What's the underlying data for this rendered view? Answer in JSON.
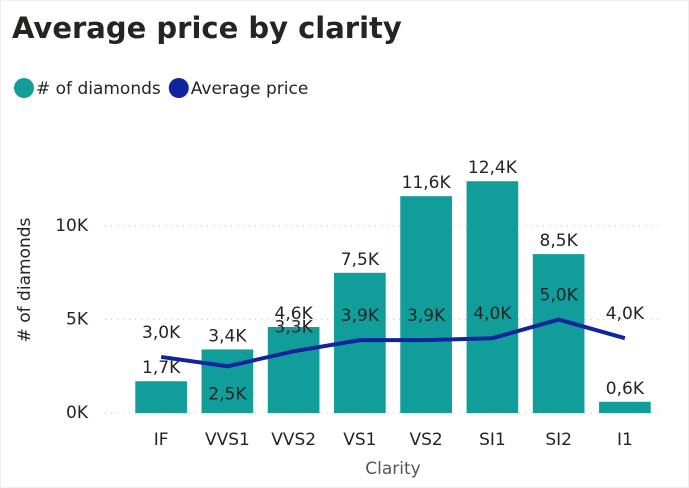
{
  "chart_data": {
    "type": "combo",
    "title": "Average price by clarity",
    "categories": [
      "IF",
      "VVS1",
      "VVS2",
      "VS1",
      "VS2",
      "SI1",
      "SI2",
      "I1"
    ],
    "series": [
      {
        "name": "# of diamonds",
        "color": "#119e9a",
        "kind": "bar",
        "values": [
          1700,
          3400,
          4600,
          7500,
          11600,
          12400,
          8500,
          600
        ],
        "value_labels": [
          "1,7K",
          "3,4K",
          "4,6K",
          "7,5K",
          "11,6K",
          "12,4K",
          "8,5K",
          "0,6K"
        ]
      },
      {
        "name": "Average price",
        "color": "#12239e",
        "kind": "line",
        "values": [
          3000,
          2500,
          3300,
          3900,
          3900,
          4000,
          5000,
          4000
        ],
        "value_labels": [
          "3,0K",
          "2,5K",
          "3,3K",
          "3,9K",
          "3,9K",
          "4,0K",
          "5,0K",
          "4,0K"
        ]
      }
    ],
    "ylabel": "# of diamonds",
    "xlabel": "Clarity",
    "ylim": [
      0,
      13000
    ],
    "yticks": [
      {
        "value": 0,
        "label": "0K"
      },
      {
        "value": 5000,
        "label": "5K"
      },
      {
        "value": 10000,
        "label": "10K"
      }
    ],
    "grid": true
  }
}
